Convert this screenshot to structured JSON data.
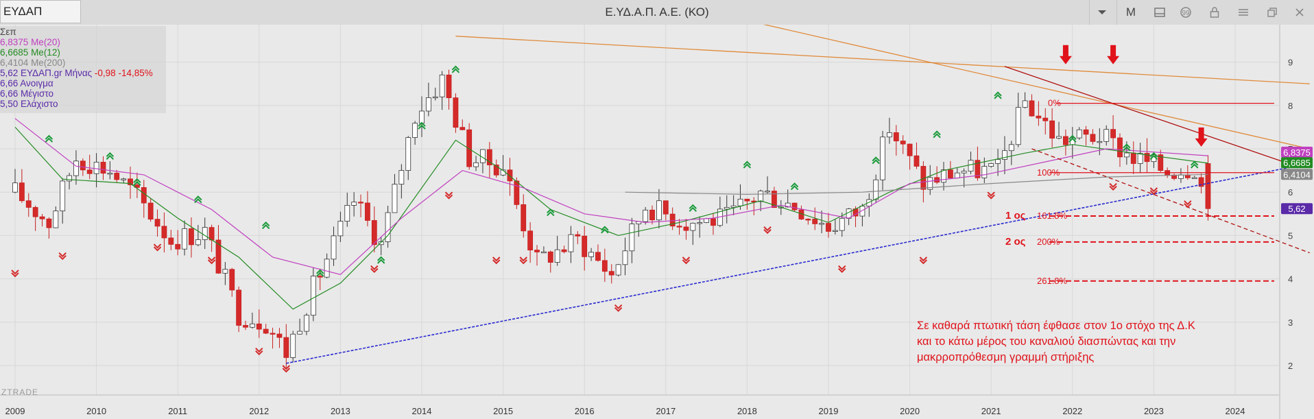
{
  "toolbar": {
    "symbol": "ΕΥΔΑΠ",
    "title": "Ε.ΥΔ.Α.Π. Α.Ε. (ΚΟ)",
    "period_button": "M",
    "icons": [
      "chevron-down-icon",
      "layout-icon",
      "comment-icon",
      "lock-icon",
      "menu-icon",
      "restore-icon",
      "close-icon"
    ]
  },
  "legend": {
    "period": "Σεπ",
    "ma20": {
      "value": "6,8375",
      "label": "Me(20)",
      "color": "#c040c0"
    },
    "ma12": {
      "value": "6,6685",
      "label": "Me(12)",
      "color": "#228b22"
    },
    "ma200": {
      "value": "6,4104",
      "label": "Me(200)",
      "color": "#888888"
    },
    "last": {
      "value": "5,62",
      "label": "ΕΥΔΑΠ.gr Μήνας",
      "change": "-0,98",
      "change_pct": "-14,85%",
      "color": "#5a2aa8",
      "change_color": "#e0121a"
    },
    "open": {
      "value": "6,66",
      "label": "Ανοιγμα"
    },
    "high": {
      "value": "6,66",
      "label": "Μέγιστο"
    },
    "low": {
      "value": "5,50",
      "label": "Ελάχιστο"
    }
  },
  "brand": "ZTRADE",
  "chart_data": {
    "type": "candlestick",
    "title": "Ε.ΥΔ.Α.Π. Α.Ε. (ΚΟ)",
    "interval": "monthly",
    "x_ticks": [
      "2009",
      "2010",
      "2011",
      "2012",
      "2013",
      "2014",
      "2015",
      "2016",
      "2017",
      "2018",
      "2019",
      "2020",
      "2021",
      "2022",
      "2023",
      "2024"
    ],
    "y_ticks": [
      2,
      3,
      4,
      5,
      6,
      7,
      8,
      9
    ],
    "ylim": [
      1.9,
      9.4
    ],
    "grid": true,
    "price_tags": [
      {
        "label": "6,8375",
        "value": 6.84,
        "color": "#c040c0"
      },
      {
        "label": "6,6685",
        "value": 6.67,
        "color": "#228b22"
      },
      {
        "label": "6,4104",
        "value": 6.41,
        "color": "#888888"
      },
      {
        "label": "5,62",
        "value": 5.62,
        "color": "#5a2aa8"
      }
    ],
    "fib_levels": [
      {
        "label": "0%",
        "value": 8.05
      },
      {
        "label": "100%",
        "value": 6.45
      },
      {
        "label": "161.8%",
        "value": 5.45
      },
      {
        "label": "200%",
        "value": 4.85
      },
      {
        "label": "261.8%",
        "value": 3.95
      }
    ],
    "targets": [
      {
        "label": "1 ος",
        "value": 5.45
      },
      {
        "label": "2 ος",
        "value": 4.85
      }
    ],
    "trendlines": [
      {
        "name": "support",
        "color": "#2a2ad0",
        "from": [
          "2012-05",
          2.05
        ],
        "to": [
          "2024-10",
          6.6
        ]
      },
      {
        "name": "downtrend-1",
        "color": "#e08a3a",
        "from": [
          "2014-06",
          9.6
        ],
        "to": [
          "2024-12",
          8.5
        ]
      },
      {
        "name": "downtrend-2",
        "color": "#e08a3a",
        "from": [
          "2016-07",
          10.6
        ],
        "to": [
          "2024-12",
          7.0
        ]
      },
      {
        "name": "channel-top",
        "color": "#b01010",
        "from": [
          "2021-03",
          8.9
        ],
        "to": [
          "2024-10",
          6.6
        ]
      },
      {
        "name": "channel-bottom",
        "color": "#b01010",
        "from": [
          "2021-07",
          7.0
        ],
        "to": [
          "2024-12",
          4.6
        ]
      }
    ],
    "annotation": [
      "Σε καθαρά πτωτική τάση έφθασε στον 1ο στόχο της Δ.Κ",
      "και το κάτω μέρος του καναλιού διασπώντας και την",
      "μακρροπρόθεσμη γραμμή στήριξης"
    ],
    "close_path": [
      [
        "2009-01",
        6.0
      ],
      [
        "2009-06",
        5.3
      ],
      [
        "2009-10",
        6.8
      ],
      [
        "2010-03",
        6.5
      ],
      [
        "2010-07",
        5.9
      ],
      [
        "2010-12",
        4.9
      ],
      [
        "2011-05",
        5.1
      ],
      [
        "2011-10",
        3.2
      ],
      [
        "2012-02",
        3.0
      ],
      [
        "2012-05",
        2.3
      ],
      [
        "2012-09",
        3.8
      ],
      [
        "2013-03",
        5.8
      ],
      [
        "2013-07",
        4.8
      ],
      [
        "2013-12",
        7.8
      ],
      [
        "2014-04",
        8.6
      ],
      [
        "2014-08",
        6.8
      ],
      [
        "2015-01",
        6.6
      ],
      [
        "2015-06",
        4.4
      ],
      [
        "2015-12",
        4.9
      ],
      [
        "2016-05",
        4.1
      ],
      [
        "2016-10",
        5.7
      ],
      [
        "2017-04",
        5.3
      ],
      [
        "2017-10",
        5.4
      ],
      [
        "2018-03",
        6.0
      ],
      [
        "2018-08",
        5.7
      ],
      [
        "2019-01",
        5.2
      ],
      [
        "2019-06",
        5.6
      ],
      [
        "2019-10",
        7.5
      ],
      [
        "2020-03",
        6.2
      ],
      [
        "2020-08",
        6.5
      ],
      [
        "2021-02",
        6.5
      ],
      [
        "2021-06",
        8.1
      ],
      [
        "2021-11",
        7.2
      ],
      [
        "2022-05",
        7.3
      ],
      [
        "2022-10",
        6.8
      ],
      [
        "2023-03",
        6.5
      ],
      [
        "2023-07",
        6.6
      ],
      [
        "2023-09",
        5.62
      ]
    ],
    "ma_series": [
      {
        "name": "Me(12)",
        "color": "#228b22",
        "points": [
          [
            "2009-01",
            7.5
          ],
          [
            "2009-08",
            6.3
          ],
          [
            "2010-06",
            6.2
          ],
          [
            "2011-01",
            5.4
          ],
          [
            "2011-10",
            4.5
          ],
          [
            "2012-06",
            3.3
          ],
          [
            "2013-01",
            3.9
          ],
          [
            "2013-08",
            5.0
          ],
          [
            "2014-06",
            7.2
          ],
          [
            "2015-01",
            6.5
          ],
          [
            "2015-08",
            5.6
          ],
          [
            "2016-06",
            5.0
          ],
          [
            "2017-03",
            5.3
          ],
          [
            "2018-03",
            5.8
          ],
          [
            "2019-01",
            5.3
          ],
          [
            "2019-10",
            6.0
          ],
          [
            "2020-06",
            6.5
          ],
          [
            "2021-06",
            6.9
          ],
          [
            "2022-01",
            7.1
          ],
          [
            "2022-10",
            6.9
          ],
          [
            "2023-09",
            6.67
          ]
        ]
      },
      {
        "name": "Me(20)",
        "color": "#c040c0",
        "points": [
          [
            "2009-01",
            7.7
          ],
          [
            "2009-10",
            6.6
          ],
          [
            "2010-08",
            6.4
          ],
          [
            "2011-06",
            5.6
          ],
          [
            "2012-03",
            4.5
          ],
          [
            "2013-01",
            4.1
          ],
          [
            "2013-10",
            5.4
          ],
          [
            "2014-07",
            6.5
          ],
          [
            "2015-04",
            6.1
          ],
          [
            "2016-01",
            5.5
          ],
          [
            "2016-10",
            5.3
          ],
          [
            "2017-08",
            5.4
          ],
          [
            "2018-06",
            5.7
          ],
          [
            "2019-04",
            5.4
          ],
          [
            "2020-01",
            6.2
          ],
          [
            "2020-12",
            6.4
          ],
          [
            "2021-09",
            6.7
          ],
          [
            "2022-06",
            7.0
          ],
          [
            "2023-09",
            6.84
          ]
        ]
      },
      {
        "name": "Me(200)",
        "color": "#888888",
        "points": [
          [
            "2016-07",
            6.0
          ],
          [
            "2018-01",
            5.95
          ],
          [
            "2019-06",
            6.0
          ],
          [
            "2021-01",
            6.2
          ],
          [
            "2022-06",
            6.35
          ],
          [
            "2023-09",
            6.41
          ]
        ]
      }
    ]
  }
}
